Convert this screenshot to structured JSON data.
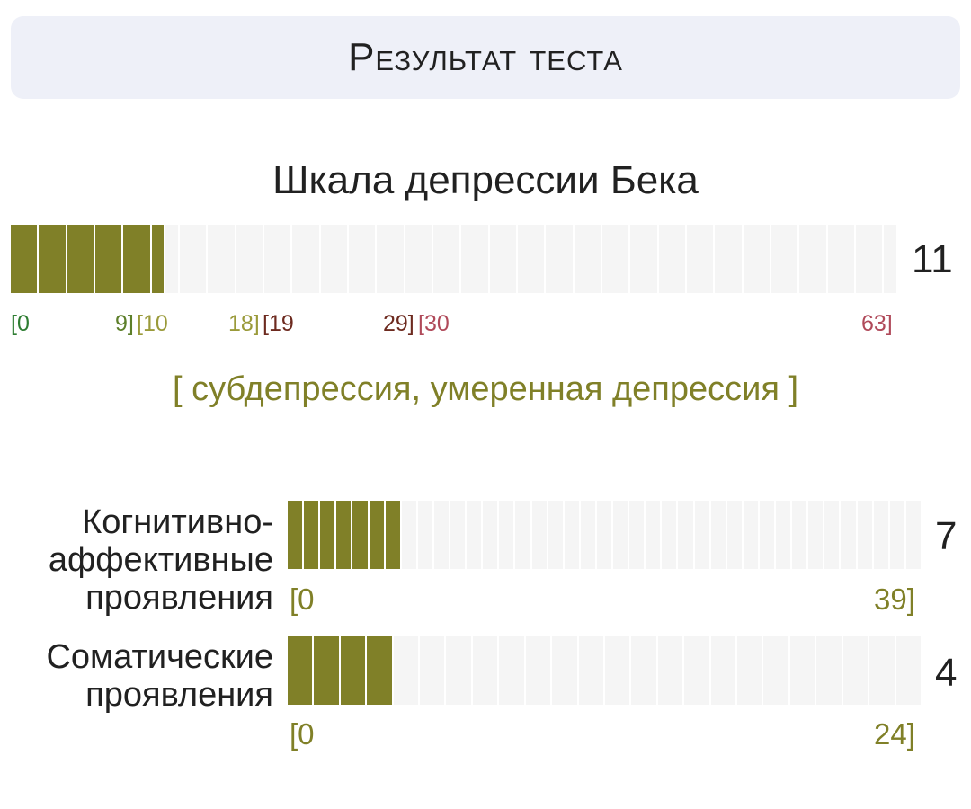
{
  "header": {
    "title": "Результат теста"
  },
  "main_scale": {
    "title": "Шкала депрессии Бека",
    "score": "11",
    "value": 11,
    "max": 63,
    "ticks": [
      {
        "text": "[0",
        "color": "#2e7d32"
      },
      {
        "text": "9]",
        "color": "#5d7f2a"
      },
      {
        "text": "[10",
        "color": "#9a9a3a"
      },
      {
        "text": "18]",
        "color": "#9a9a3a"
      },
      {
        "text": "[19",
        "color": "#6d2a1f"
      },
      {
        "text": "29]",
        "color": "#6d2a1f"
      },
      {
        "text": "[30",
        "color": "#b04a5a"
      },
      {
        "text": "63]",
        "color": "#b04a5a"
      }
    ],
    "verdict": "[ субдепрессия, умеренная депрессия ]"
  },
  "sub_scales": [
    {
      "label_lines": [
        "Когнитивно-",
        "аффективные",
        "проявления"
      ],
      "score": "7",
      "value": 7,
      "max": 39,
      "range_min": "[0",
      "range_max": "39]"
    },
    {
      "label_lines": [
        "Соматические",
        "проявления"
      ],
      "score": "4",
      "value": 4,
      "max": 24,
      "range_min": "[0",
      "range_max": "24]"
    }
  ],
  "colors": {
    "fill": "#808028",
    "track": "#f5f5f5",
    "range_text": "#808028"
  }
}
